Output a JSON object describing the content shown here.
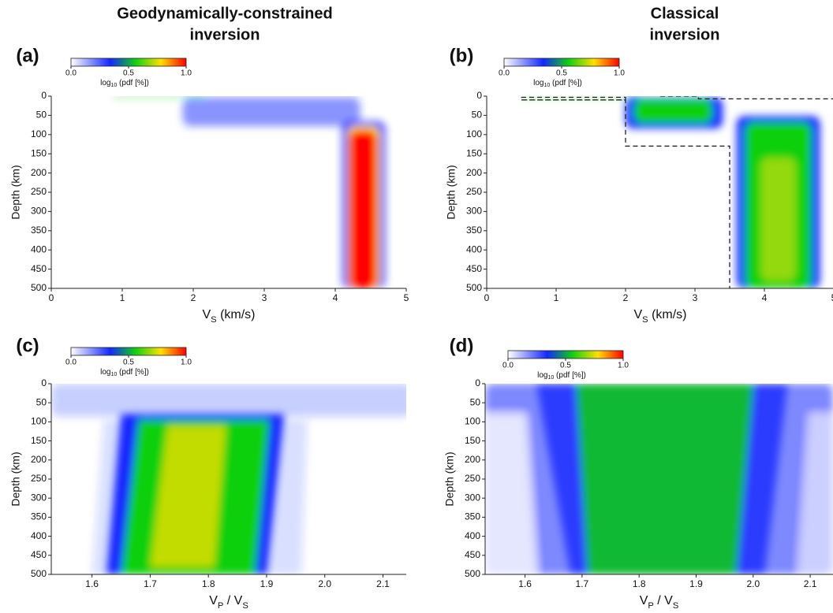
{
  "chart_data": [
    {
      "type": "heatmap",
      "title": [
        "Geodynamically-constrained",
        "inversion"
      ],
      "panel": "(a)",
      "xlabel": [
        "V",
        "S",
        " (km/s)"
      ],
      "ylabel": "Depth (km)",
      "xlim": [
        0,
        5
      ],
      "xticks": [
        0,
        1,
        2,
        3,
        4,
        5
      ],
      "ylim": [
        500,
        0
      ],
      "yticks": [
        0,
        50,
        100,
        150,
        200,
        250,
        300,
        350,
        400,
        450,
        500
      ],
      "colorbar": {
        "label": [
          "log",
          "10",
          " (pdf [%])"
        ],
        "ticks": [
          {
            "value": 0,
            "label": "0.0"
          },
          {
            "value": 0.5,
            "label": "0.5"
          },
          {
            "value": 1,
            "label": "1.0"
          }
        ]
      },
      "colormap": [
        "#ffffff",
        "#1428ff",
        "#10d010",
        "#ffe000",
        "#ff0000"
      ]
    },
    {
      "type": "heatmap",
      "title": [
        "Classical",
        "inversion"
      ],
      "panel": "(b)",
      "xlabel": [
        "V",
        "S",
        " (km/s)"
      ],
      "ylabel": "Depth (km)",
      "xlim": [
        0,
        5
      ],
      "xticks": [
        0,
        1,
        2,
        3,
        4,
        5
      ],
      "ylim": [
        500,
        0
      ],
      "yticks": [
        0,
        50,
        100,
        150,
        200,
        250,
        300,
        350,
        400,
        450,
        500
      ],
      "colorbar": {
        "label": [
          "log",
          "10",
          " (pdf [%])"
        ],
        "ticks": [
          {
            "value": 0,
            "label": "0.0"
          },
          {
            "value": 0.5,
            "label": "0.5"
          },
          {
            "value": 1,
            "label": "1.0"
          }
        ]
      },
      "colormap": [
        "#ffffff",
        "#1428ff",
        "#10d010",
        "#ffe000",
        "#ff0000"
      ]
    },
    {
      "type": "heatmap",
      "panel": "(c)",
      "xlabel": [
        "V",
        "P",
        " / V",
        "S"
      ],
      "ylabel": "Depth (km)",
      "xlim": [
        1.53,
        2.14
      ],
      "xticks": [
        1.6,
        1.7,
        1.8,
        1.9,
        {
          "value": 2,
          "label": "2.0"
        },
        2.1
      ],
      "ylim": [
        500,
        0
      ],
      "yticks": [
        0,
        50,
        100,
        150,
        200,
        250,
        300,
        350,
        400,
        450,
        500
      ],
      "colorbar": {
        "label": [
          "log",
          "10",
          " (pdf [%])"
        ],
        "ticks": [
          {
            "value": 0,
            "label": "0.0"
          },
          {
            "value": 0.5,
            "label": "0.5"
          },
          {
            "value": 1,
            "label": "1.0"
          }
        ]
      },
      "colormap": [
        "#ffffff",
        "#1428ff",
        "#10d010",
        "#ffe000",
        "#ff0000"
      ]
    },
    {
      "type": "heatmap",
      "panel": "(d)",
      "xlabel": [
        "V",
        "P",
        " / V",
        "S"
      ],
      "ylabel": "Depth (km)",
      "xlim": [
        1.53,
        2.14
      ],
      "xticks": [
        1.6,
        1.7,
        1.8,
        1.9,
        {
          "value": 2,
          "label": "2.0"
        },
        2.1
      ],
      "ylim": [
        500,
        0
      ],
      "yticks": [
        0,
        50,
        100,
        150,
        200,
        250,
        300,
        350,
        400,
        450,
        500
      ],
      "colorbar": {
        "label": [
          "log",
          "10",
          " (pdf [%])"
        ],
        "ticks": [
          {
            "value": 0,
            "label": "0.0"
          },
          {
            "value": 0.5,
            "label": "0.5"
          },
          {
            "value": 1,
            "label": "1.0"
          }
        ]
      },
      "colormap": [
        "#ffffff",
        "#1428ff",
        "#10d010",
        "#ffe000",
        "#ff0000"
      ]
    }
  ]
}
